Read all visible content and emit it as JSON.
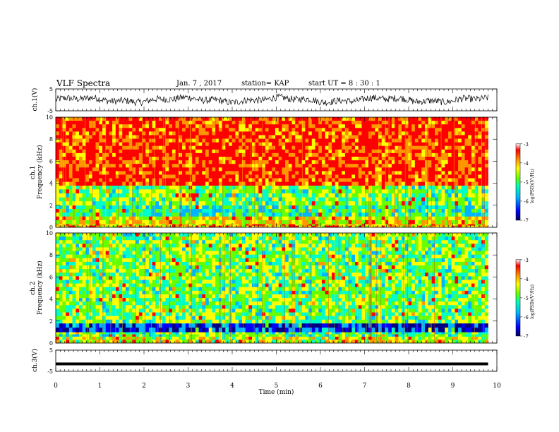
{
  "header": {
    "title": "VLF Spectra",
    "date": "Jan. 7 , 2017",
    "station": "station= KAP",
    "start": "start UT = 8 : 30 : 1"
  },
  "colors": {
    "spectrogram_scale": [
      "#000080",
      "#0000ff",
      "#00b4ff",
      "#00ffc8",
      "#64ff00",
      "#ffff00",
      "#ff9600",
      "#ff0000",
      "#ffffff"
    ]
  },
  "chart_data": [
    {
      "type": "line",
      "name": "ch1-waveform",
      "ylabel": "ch.1(V)",
      "ylim": [
        -5,
        5
      ],
      "y_ticks": [
        "5",
        "-5"
      ],
      "x_range": [
        0,
        10
      ],
      "data_extent_min": 9.8,
      "description_values": "noisy waveform roughly between -3 and 3 V"
    },
    {
      "type": "heatmap",
      "name": "ch1-spectrogram",
      "ylabel": "Frequency (kHz)",
      "channel_label": "ch.1",
      "ylim": [
        0,
        10
      ],
      "y_ticks": [
        "0",
        "2",
        "4",
        "6",
        "8",
        "10"
      ],
      "colorbar": {
        "label": "log(PSD)(V²/Hz)",
        "range": [
          -7,
          -3
        ],
        "ticks": [
          "-3",
          "-4",
          "-5",
          "-6",
          "-7"
        ]
      },
      "bands": [
        {
          "from": 0.0,
          "to": 0.3,
          "level": -4.0
        },
        {
          "from": 0.3,
          "to": 1.0,
          "level": -4.2
        },
        {
          "from": 1.0,
          "to": 2.0,
          "level": -5.2
        },
        {
          "from": 2.0,
          "to": 3.8,
          "level": -4.8
        },
        {
          "from": 3.8,
          "to": 10.0,
          "level": -3.4
        }
      ]
    },
    {
      "type": "heatmap",
      "name": "ch2-spectrogram",
      "ylabel": "Frequency (kHz)",
      "channel_label": "ch.2",
      "ylim": [
        0,
        10
      ],
      "y_ticks": [
        "0",
        "2",
        "4",
        "6",
        "8",
        "10"
      ],
      "colorbar": {
        "label": "log(PSD)(V²/Hz)",
        "range": [
          -7,
          -3
        ],
        "ticks": [
          "-3",
          "-4",
          "-5",
          "-6",
          "-7"
        ]
      },
      "bands": [
        {
          "from": 0.0,
          "to": 0.6,
          "level": -4.4
        },
        {
          "from": 0.6,
          "to": 1.0,
          "level": -5.0
        },
        {
          "from": 1.0,
          "to": 1.8,
          "level": -6.3
        },
        {
          "from": 1.8,
          "to": 10.0,
          "level": -4.8
        }
      ]
    },
    {
      "type": "line",
      "name": "ch3-waveform",
      "ylabel": "ch.3(V)",
      "ylim": [
        -5,
        5
      ],
      "y_ticks": [
        "5",
        "-5"
      ],
      "x_range": [
        0,
        10
      ],
      "data_extent_min": 9.8,
      "constant_value": -1.5
    }
  ],
  "x_axis": {
    "label": "Time (min)",
    "ticks": [
      "0",
      "1",
      "2",
      "3",
      "4",
      "5",
      "6",
      "7",
      "8",
      "9",
      "10"
    ],
    "range": [
      0,
      10
    ]
  }
}
